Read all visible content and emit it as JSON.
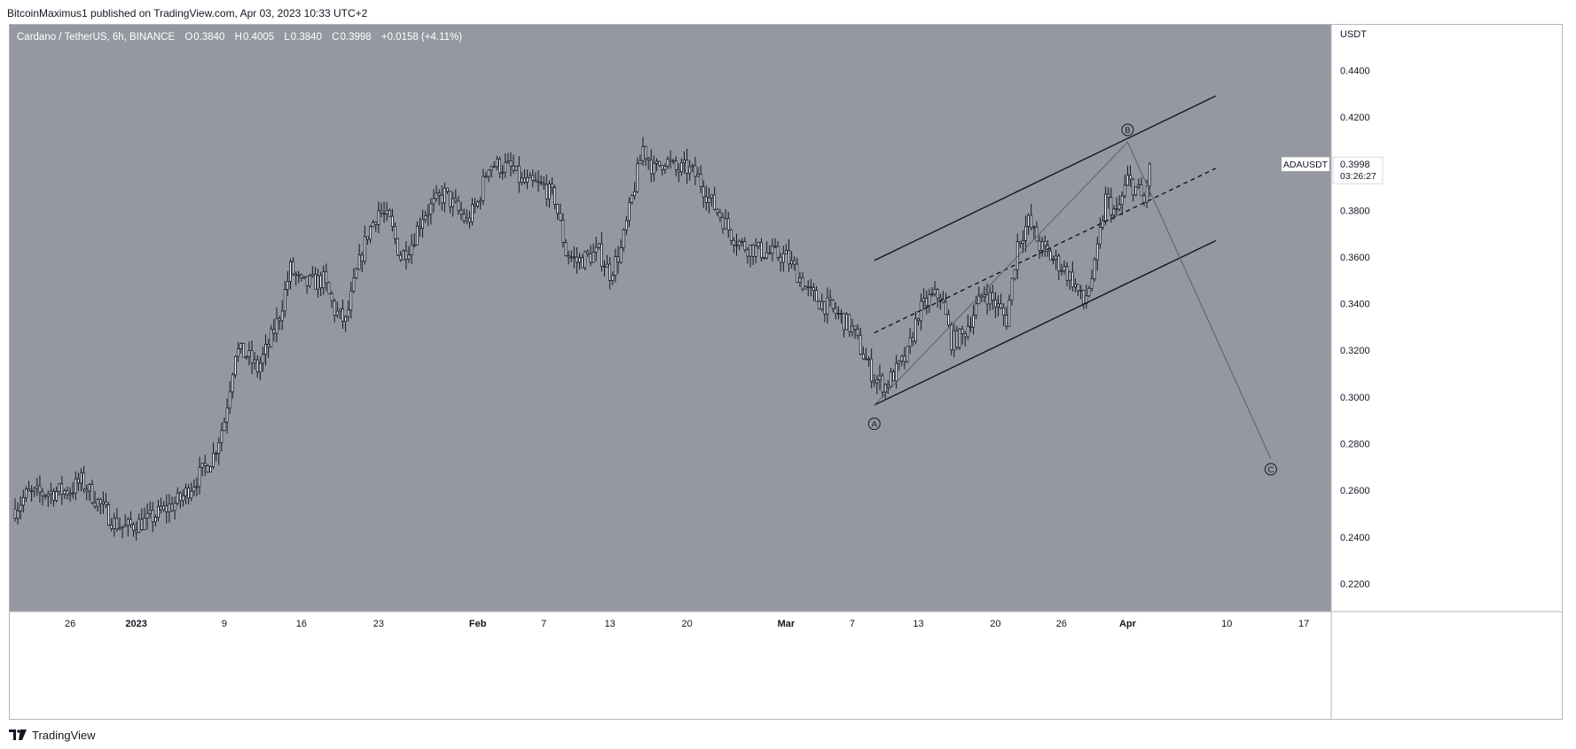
{
  "header": {
    "publisher_text": "BitcoinMaximus1 published on TradingView.com, Apr 03, 2023 10:33 UTC+2"
  },
  "legend": {
    "symbol_text": "Cardano / TetherUS, 6h, BINANCE",
    "open_label": "O",
    "open_value": "0.3840",
    "high_label": "H",
    "high_value": "0.4005",
    "low_label": "L",
    "low_value": "0.3840",
    "close_label": "C",
    "close_value": "0.3998",
    "change_text": "+0.0158 (+4.11%)"
  },
  "footer": {
    "brand_text": "TradingView"
  },
  "colors": {
    "plot_background": "#9598a1",
    "candle": "#ffffff",
    "wick": "#131722",
    "channel_line": "#131722",
    "wave_path": "#5d606b",
    "axis_text": "#131722",
    "price_tag_bg": "#ffffff"
  },
  "chart_data": {
    "type": "candlestick",
    "symbol": "ADAUSDT",
    "timeframe": "6h",
    "y_axis": {
      "unit_label": "USDT",
      "ylim": [
        0.208,
        0.4595
      ],
      "ticks": [
        {
          "value": 0.44,
          "label": "0.4400"
        },
        {
          "value": 0.42,
          "label": "0.4200"
        },
        {
          "value": 0.4,
          "label": "0.4000"
        },
        {
          "value": 0.38,
          "label": "0.3800"
        },
        {
          "value": 0.36,
          "label": "0.3600"
        },
        {
          "value": 0.34,
          "label": "0.3400"
        },
        {
          "value": 0.32,
          "label": "0.3200"
        },
        {
          "value": 0.3,
          "label": "0.3000"
        },
        {
          "value": 0.28,
          "label": "0.2800"
        },
        {
          "value": 0.26,
          "label": "0.2600"
        },
        {
          "value": 0.24,
          "label": "0.2400"
        },
        {
          "value": 0.22,
          "label": "0.2200"
        }
      ]
    },
    "x_axis": {
      "start_date": "2022-12-21",
      "end_date": "2023-04-19",
      "ticks": [
        {
          "date": "2022-12-26",
          "label": "26",
          "bold": false
        },
        {
          "date": "2023-01-01",
          "label": "2023",
          "bold": true
        },
        {
          "date": "2023-01-09",
          "label": "9",
          "bold": false
        },
        {
          "date": "2023-01-16",
          "label": "16",
          "bold": false
        },
        {
          "date": "2023-01-23",
          "label": "23",
          "bold": false
        },
        {
          "date": "2023-02-01",
          "label": "Feb",
          "bold": true
        },
        {
          "date": "2023-02-07",
          "label": "7",
          "bold": false
        },
        {
          "date": "2023-02-13",
          "label": "13",
          "bold": false
        },
        {
          "date": "2023-02-20",
          "label": "20",
          "bold": false
        },
        {
          "date": "2023-03-01",
          "label": "Mar",
          "bold": true
        },
        {
          "date": "2023-03-07",
          "label": "7",
          "bold": false
        },
        {
          "date": "2023-03-13",
          "label": "13",
          "bold": false
        },
        {
          "date": "2023-03-20",
          "label": "20",
          "bold": false
        },
        {
          "date": "2023-03-26",
          "label": "26",
          "bold": false
        },
        {
          "date": "2023-04-01",
          "label": "Apr",
          "bold": true
        },
        {
          "date": "2023-04-10",
          "label": "10",
          "bold": false
        },
        {
          "date": "2023-04-17",
          "label": "17",
          "bold": false
        }
      ]
    },
    "price_path": [
      [
        "2022-12-21",
        0.252
      ],
      [
        "2022-12-22",
        0.258
      ],
      [
        "2022-12-24",
        0.259
      ],
      [
        "2022-12-26",
        0.26
      ],
      [
        "2022-12-27",
        0.264
      ],
      [
        "2022-12-29",
        0.252
      ],
      [
        "2022-12-30",
        0.246
      ],
      [
        "2022-12-31",
        0.244
      ],
      [
        "2023-01-02",
        0.247
      ],
      [
        "2023-01-04",
        0.253
      ],
      [
        "2023-01-05",
        0.256
      ],
      [
        "2023-01-07",
        0.268
      ],
      [
        "2023-01-08",
        0.275
      ],
      [
        "2023-01-09",
        0.29
      ],
      [
        "2023-01-10",
        0.32
      ],
      [
        "2023-01-11",
        0.318
      ],
      [
        "2023-01-12",
        0.312
      ],
      [
        "2023-01-13",
        0.322
      ],
      [
        "2023-01-14",
        0.335
      ],
      [
        "2023-01-15",
        0.355
      ],
      [
        "2023-01-16",
        0.348
      ],
      [
        "2023-01-18",
        0.35
      ],
      [
        "2023-01-19",
        0.337
      ],
      [
        "2023-01-20",
        0.332
      ],
      [
        "2023-01-21",
        0.353
      ],
      [
        "2023-01-22",
        0.37
      ],
      [
        "2023-01-23",
        0.38
      ],
      [
        "2023-01-24",
        0.375
      ],
      [
        "2023-01-25",
        0.36
      ],
      [
        "2023-01-26",
        0.366
      ],
      [
        "2023-01-27",
        0.378
      ],
      [
        "2023-01-29",
        0.387
      ],
      [
        "2023-01-31",
        0.375
      ],
      [
        "2023-02-01",
        0.383
      ],
      [
        "2023-02-02",
        0.4
      ],
      [
        "2023-02-04",
        0.398
      ],
      [
        "2023-02-05",
        0.392
      ],
      [
        "2023-02-07",
        0.39
      ],
      [
        "2023-02-08",
        0.385
      ],
      [
        "2023-02-09",
        0.362
      ],
      [
        "2023-02-10",
        0.358
      ],
      [
        "2023-02-12",
        0.362
      ],
      [
        "2023-02-13",
        0.353
      ],
      [
        "2023-02-14",
        0.363
      ],
      [
        "2023-02-15",
        0.385
      ],
      [
        "2023-02-16",
        0.407
      ],
      [
        "2023-02-17",
        0.397
      ],
      [
        "2023-02-18",
        0.402
      ],
      [
        "2023-02-19",
        0.397
      ],
      [
        "2023-02-20",
        0.398
      ],
      [
        "2023-02-21",
        0.394
      ],
      [
        "2023-02-22",
        0.385
      ],
      [
        "2023-02-23",
        0.378
      ],
      [
        "2023-02-24",
        0.37
      ],
      [
        "2023-02-25",
        0.365
      ],
      [
        "2023-02-27",
        0.362
      ],
      [
        "2023-03-01",
        0.36
      ],
      [
        "2023-03-02",
        0.353
      ],
      [
        "2023-03-03",
        0.345
      ],
      [
        "2023-03-04",
        0.341
      ],
      [
        "2023-03-05",
        0.338
      ],
      [
        "2023-03-06",
        0.334
      ],
      [
        "2023-03-07",
        0.329
      ],
      [
        "2023-03-08",
        0.318
      ],
      [
        "2023-03-09",
        0.308
      ],
      [
        "2023-03-10",
        0.305
      ],
      [
        "2023-03-11",
        0.311
      ],
      [
        "2023-03-12",
        0.318
      ],
      [
        "2023-03-13",
        0.336
      ],
      [
        "2023-03-14",
        0.342
      ],
      [
        "2023-03-15",
        0.344
      ],
      [
        "2023-03-16",
        0.324
      ],
      [
        "2023-03-17",
        0.326
      ],
      [
        "2023-03-18",
        0.336
      ],
      [
        "2023-03-19",
        0.345
      ],
      [
        "2023-03-20",
        0.34
      ],
      [
        "2023-03-21",
        0.333
      ],
      [
        "2023-03-22",
        0.366
      ],
      [
        "2023-03-23",
        0.375
      ],
      [
        "2023-03-24",
        0.365
      ],
      [
        "2023-03-25",
        0.36
      ],
      [
        "2023-03-26",
        0.356
      ],
      [
        "2023-03-27",
        0.35
      ],
      [
        "2023-03-28",
        0.34
      ],
      [
        "2023-03-29",
        0.355
      ],
      [
        "2023-03-30",
        0.385
      ],
      [
        "2023-03-31",
        0.378
      ],
      [
        "2023-04-01",
        0.393
      ],
      [
        "2023-04-02",
        0.388
      ],
      [
        "2023-04-02T12:00",
        0.383
      ],
      [
        "2023-04-03",
        0.3998
      ]
    ],
    "annotations": {
      "channel_upper": [
        [
          "2023-03-09",
          0.3585
        ],
        [
          "2023-04-09",
          0.429
        ]
      ],
      "channel_lower": [
        [
          "2023-03-09",
          0.2965
        ],
        [
          "2023-04-09",
          0.367
        ]
      ],
      "channel_mid": [
        [
          "2023-03-09",
          0.3275
        ],
        [
          "2023-04-09",
          0.398
        ]
      ],
      "wave_points": [
        {
          "label": "A",
          "date": "2023-03-09",
          "price": 0.2965,
          "label_price": 0.2885
        },
        {
          "label": "B",
          "date": "2023-04-01",
          "price": 0.4092,
          "label_price": 0.4145
        },
        {
          "label": "C",
          "date": "2023-04-14",
          "price": 0.2735,
          "label_price": 0.269
        }
      ]
    },
    "price_tag": {
      "symbol": "ADAUSDT",
      "price": 0.3998,
      "price_label": "0.3998",
      "countdown": "03:26:27"
    }
  }
}
